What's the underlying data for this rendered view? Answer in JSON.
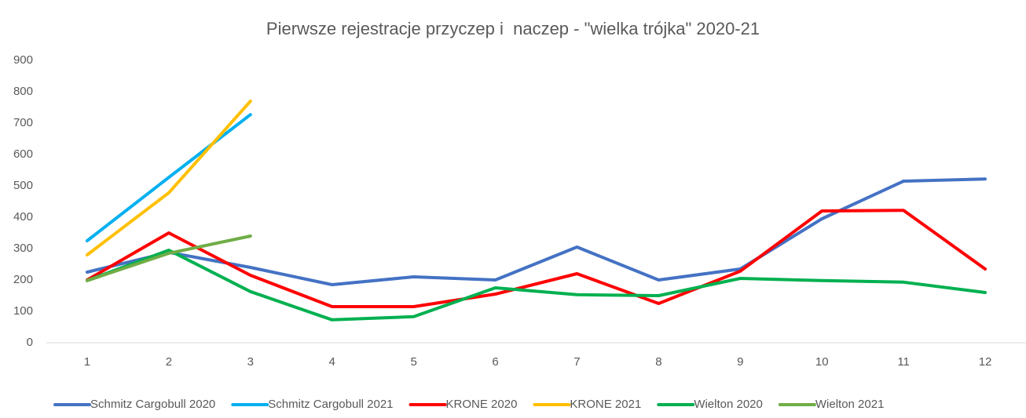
{
  "chart_data": {
    "type": "line",
    "title": "Pierwsze rejestracje przyczep i  naczep - \"wielka trójka\" 2020-21",
    "categories": [
      1,
      2,
      3,
      4,
      5,
      6,
      7,
      8,
      9,
      10,
      11,
      12
    ],
    "series": [
      {
        "name": "Schmitz Cargobull 2020",
        "color": "#4472c4",
        "values": [
          225,
          288,
          240,
          185,
          210,
          200,
          305,
          200,
          235,
          395,
          515,
          522
        ]
      },
      {
        "name": "Schmitz Cargobull 2021",
        "color": "#00b0f0",
        "values": [
          325,
          527,
          727,
          null,
          null,
          null,
          null,
          null,
          null,
          null,
          null,
          null
        ]
      },
      {
        "name": "KRONE 2020",
        "color": "#ff0000",
        "values": [
          200,
          350,
          215,
          115,
          115,
          155,
          220,
          125,
          228,
          420,
          422,
          235
        ]
      },
      {
        "name": "KRONE 2021",
        "color": "#ffc000",
        "values": [
          280,
          478,
          770,
          null,
          null,
          null,
          null,
          null,
          null,
          null,
          null,
          null
        ]
      },
      {
        "name": "Wielton 2020",
        "color": "#00b050",
        "values": [
          198,
          295,
          163,
          73,
          83,
          175,
          153,
          150,
          205,
          198,
          193,
          160
        ]
      },
      {
        "name": "Wielton 2021",
        "color": "#70ad47",
        "values": [
          198,
          285,
          340,
          null,
          null,
          null,
          null,
          null,
          null,
          null,
          null,
          null
        ]
      }
    ],
    "ylim": [
      0,
      900
    ],
    "yticks": [
      0,
      100,
      200,
      300,
      400,
      500,
      600,
      700,
      800,
      900
    ],
    "grid": false,
    "legend": "bottom"
  }
}
